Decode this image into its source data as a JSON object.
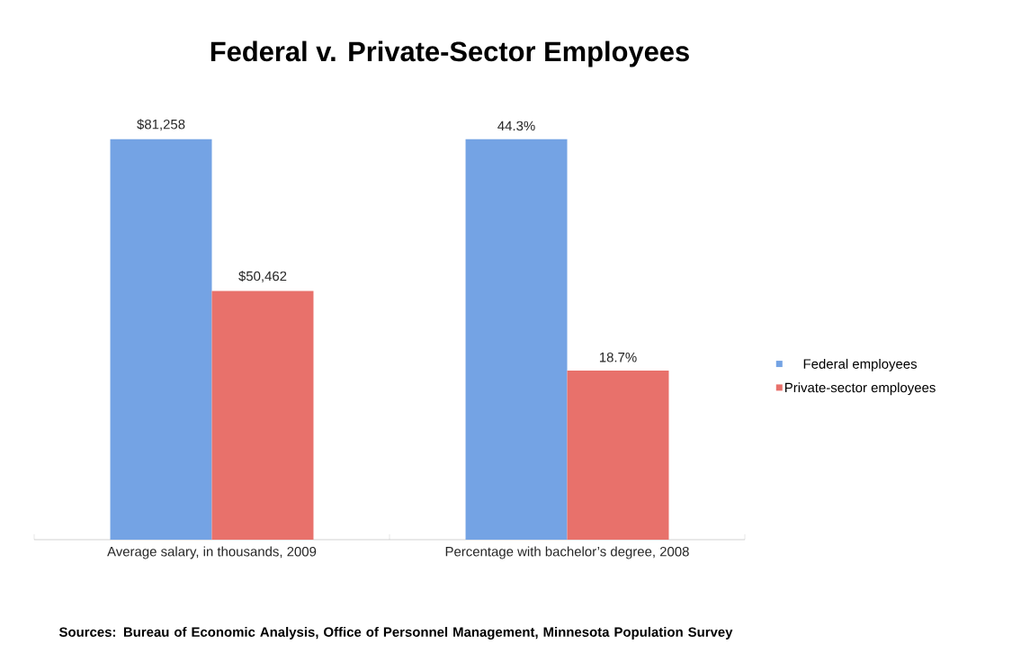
{
  "chart_data": {
    "type": "bar",
    "title": "Federal v. Private-Sector Employees",
    "categories": [
      "Average salary, in thousands, 2009",
      "Percentage with bachelor’s degree, 2008"
    ],
    "series": [
      {
        "name": "Federal employees",
        "color": "#74a3e4",
        "values": [
          81258,
          null
        ],
        "value_labels": [
          "$81,258",
          null
        ]
      },
      {
        "name": "Private-sector employees",
        "color": "#e8716b",
        "values": [
          50462,
          null
        ],
        "value_labels": [
          "$50,462",
          null
        ]
      },
      {
        "color": "#74a3e4",
        "axis": "y2",
        "values": [
          null,
          44.3
        ],
        "value_labels": [
          null,
          "44.3%"
        ]
      },
      {
        "color": "#e8716b",
        "axis": "y2",
        "values": [
          null,
          18.7
        ],
        "value_labels": [
          null,
          "18.7%"
        ]
      }
    ],
    "tick_labels": "x",
    "legend": "right",
    "annotations": [
      "**Sources: Bureau of Economic Analysis, Office of Personnel Management, Minnesota Population Survey**"
    ]
  }
}
